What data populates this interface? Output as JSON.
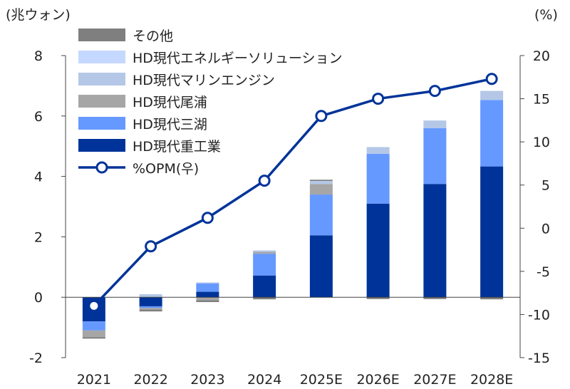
{
  "chart_data": {
    "type": "bar+line",
    "left_axis_unit": "(兆ウォン)",
    "right_axis_unit": "(%)",
    "categories": [
      "2021",
      "2022",
      "2023",
      "2024",
      "2025E",
      "2026E",
      "2027E",
      "2028E"
    ],
    "left_ylim": [
      -2,
      8
    ],
    "left_ticks": [
      "8",
      "6",
      "4",
      "2",
      "0",
      "-2"
    ],
    "right_ylim": [
      -15,
      20
    ],
    "right_ticks": [
      "20",
      "15",
      "10",
      "5",
      "0",
      "-5",
      "-10",
      "-15"
    ],
    "stack_order_bottom_to_top": [
      "HD現代重工業",
      "HD現代三湖",
      "HD現代尾浦",
      "HD現代マリンエンジン",
      "HD現代エネルギーソリューション",
      "その他"
    ],
    "series": [
      {
        "name": "HD現代重工業",
        "color": "#003399",
        "values": [
          -0.8,
          -0.3,
          0.18,
          0.72,
          2.05,
          3.1,
          3.75,
          4.33
        ]
      },
      {
        "name": "HD現代三湖",
        "color": "#6699FF",
        "values": [
          -0.3,
          -0.05,
          0.28,
          0.72,
          1.35,
          1.65,
          1.85,
          2.2
        ]
      },
      {
        "name": "HD現代尾浦",
        "color": "#A6A6A6",
        "values": [
          -0.22,
          -0.06,
          -0.1,
          0.06,
          0.35,
          0.0,
          0.0,
          0.0
        ]
      },
      {
        "name": "HD現代マリンエンジン",
        "color": "#B4C7E7",
        "values": [
          0.0,
          0.1,
          0.03,
          0.05,
          0.1,
          0.22,
          0.25,
          0.3
        ]
      },
      {
        "name": "HD現代エネルギーソリューション",
        "color": "#C5D8FF",
        "values": [
          0.0,
          0.0,
          0.0,
          0.0,
          0.0,
          0.0,
          0.0,
          0.0
        ]
      },
      {
        "name": "その他",
        "color": "#7F7F7F",
        "values": [
          -0.05,
          -0.06,
          -0.06,
          -0.07,
          0.04,
          -0.06,
          -0.06,
          -0.07
        ]
      }
    ],
    "line": {
      "name": "%OPM(우)",
      "color": "#003399",
      "axis": "right",
      "values": [
        -9.0,
        -2.1,
        1.2,
        5.5,
        13.0,
        15.0,
        15.9,
        17.3
      ]
    },
    "legend_position": "top-left"
  }
}
